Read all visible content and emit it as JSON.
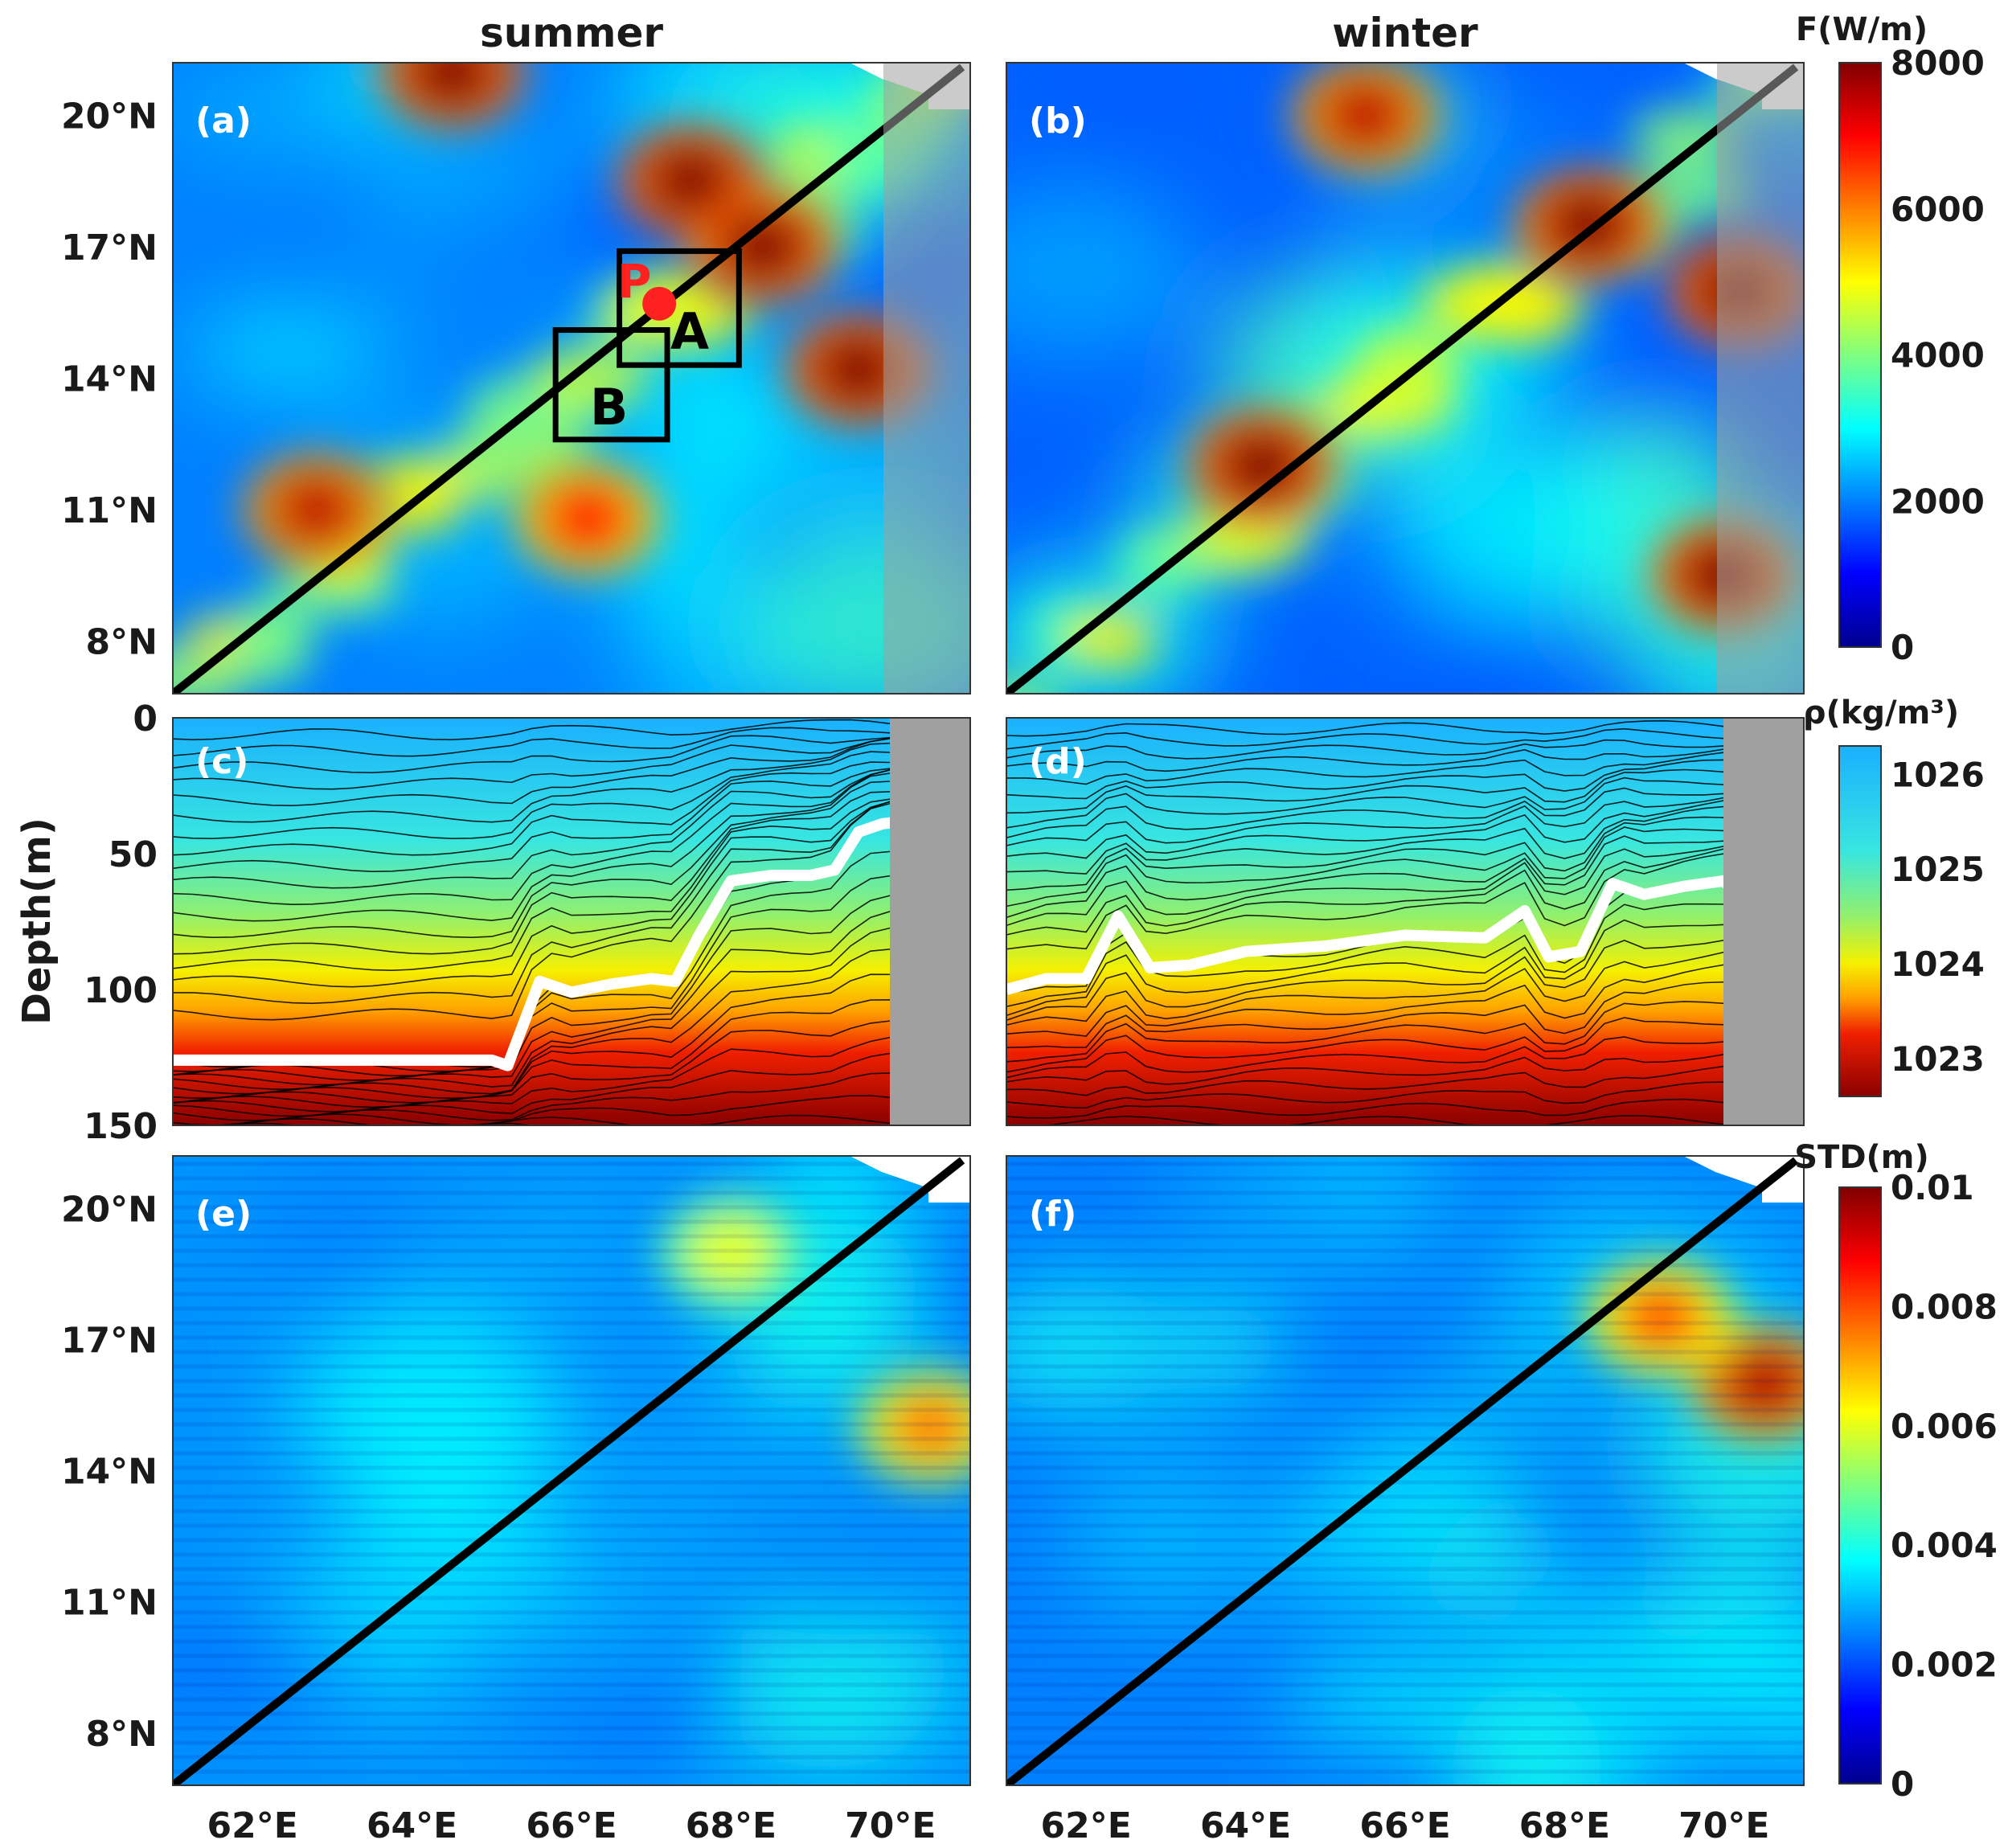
{
  "column_titles": [
    "summer",
    "winter"
  ],
  "x_ticks": [
    "62°E",
    "64°E",
    "66°E",
    "68°E",
    "70°E"
  ],
  "lat_ticks": [
    "20°N",
    "17°N",
    "14°N",
    "11°N",
    "8°N"
  ],
  "depth_ticks": [
    "0",
    "50",
    "100",
    "150"
  ],
  "depth_label": "Depth(m)",
  "colorbars": {
    "flux": {
      "label": "F(W/m)",
      "ticks": [
        "8000",
        "6000",
        "4000",
        "2000",
        "0"
      ],
      "range": [
        0,
        8000
      ]
    },
    "density": {
      "label": "ρ(kg/m³)",
      "ticks": [
        "1026",
        "1025",
        "1024",
        "1023"
      ],
      "range": [
        1022.6,
        1026.3
      ]
    },
    "std": {
      "label": "STD(m)",
      "ticks": [
        "0.01",
        "0.008",
        "0.006",
        "0.004",
        "0.002",
        "0"
      ],
      "range": [
        0,
        0.01
      ]
    }
  },
  "panels": {
    "a": {
      "label": "(a)",
      "field": "flux",
      "season": "summer"
    },
    "b": {
      "label": "(b)",
      "field": "flux",
      "season": "winter"
    },
    "c": {
      "label": "(c)",
      "field": "density",
      "season": "summer"
    },
    "d": {
      "label": "(d)",
      "field": "density",
      "season": "winter"
    },
    "e": {
      "label": "(e)",
      "field": "std",
      "season": "summer"
    },
    "f": {
      "label": "(f)",
      "field": "std",
      "season": "winter"
    }
  },
  "annotations": {
    "box_a_label": "A",
    "box_b_label": "B",
    "point_label": "P",
    "point_color": "#ff2020"
  },
  "chart_data": [
    {
      "type": "heatmap",
      "panels": [
        "a",
        "b",
        "e",
        "f"
      ],
      "xlim": [
        61,
        71
      ],
      "ylim": [
        6.8,
        21.2
      ],
      "transect_line": {
        "x": [
          61,
          70.9
        ],
        "y": [
          6.8,
          21.1
        ]
      },
      "land_mask_color": "#a0a0a0",
      "box_a": {
        "x": [
          66.6,
          68.1
        ],
        "y": [
          14.3,
          16.9
        ]
      },
      "box_b": {
        "x": [
          65.8,
          67.2
        ],
        "y": [
          12.6,
          15.1
        ]
      },
      "point_p": {
        "x": 67.1,
        "y": 15.7
      },
      "flux_hotspots_summer": [
        {
          "lon": 67.5,
          "lat": 18.5,
          "value": 8000
        },
        {
          "lon": 68.4,
          "lat": 17.0,
          "value": 8000
        },
        {
          "lon": 62.8,
          "lat": 11.0,
          "value": 7500
        },
        {
          "lon": 66.2,
          "lat": 10.8,
          "value": 7000
        },
        {
          "lon": 69.6,
          "lat": 14.2,
          "value": 8000
        },
        {
          "lon": 64.5,
          "lat": 21.0,
          "value": 8000
        }
      ],
      "flux_hotspots_winter": [
        {
          "lon": 64.2,
          "lat": 12.0,
          "value": 8000
        },
        {
          "lon": 68.3,
          "lat": 17.5,
          "value": 8000
        },
        {
          "lon": 70.2,
          "lat": 16.0,
          "value": 8000
        },
        {
          "lon": 70.0,
          "lat": 9.5,
          "value": 8000
        },
        {
          "lon": 65.5,
          "lat": 20.0,
          "value": 7500
        }
      ],
      "std_hotspots_summer": [
        {
          "lon": 70.5,
          "lat": 15.0,
          "value": 0.0075
        },
        {
          "lon": 68.0,
          "lat": 19.0,
          "value": 0.006
        }
      ],
      "std_hotspots_winter": [
        {
          "lon": 70.5,
          "lat": 16.0,
          "value": 0.0095
        },
        {
          "lon": 69.2,
          "lat": 17.5,
          "value": 0.008
        }
      ]
    },
    {
      "type": "heatmap",
      "panels": [
        "c",
        "d"
      ],
      "xlim": [
        61,
        71
      ],
      "ylim": [
        150,
        0
      ],
      "ylabel": "Depth(m)",
      "mixed_layer_depth_summer": {
        "lon": [
          61.0,
          62.0,
          63.0,
          64.0,
          65.0,
          65.2,
          65.6,
          66.0,
          66.5,
          67.0,
          67.3,
          67.6,
          68.0,
          68.5,
          69.0,
          69.3,
          69.6,
          69.9,
          70.2,
          70.4,
          70.6
        ],
        "depth": [
          126,
          126,
          126,
          126,
          126,
          128,
          97,
          101,
          98,
          96,
          97,
          80,
          60,
          58,
          58,
          56,
          42,
          39,
          38,
          46,
          33
        ]
      },
      "mixed_layer_depth_winter": {
        "lon": [
          61.0,
          61.5,
          62.0,
          62.4,
          62.8,
          63.3,
          64.0,
          65.0,
          66.0,
          67.0,
          67.5,
          67.8,
          68.2,
          68.6,
          69.0,
          69.5,
          70.0,
          70.3,
          70.5
        ],
        "depth": [
          100,
          96,
          96,
          73,
          92,
          91,
          86,
          84,
          80,
          81,
          71,
          88,
          86,
          61,
          65,
          62,
          60,
          70,
          66
        ]
      }
    }
  ]
}
